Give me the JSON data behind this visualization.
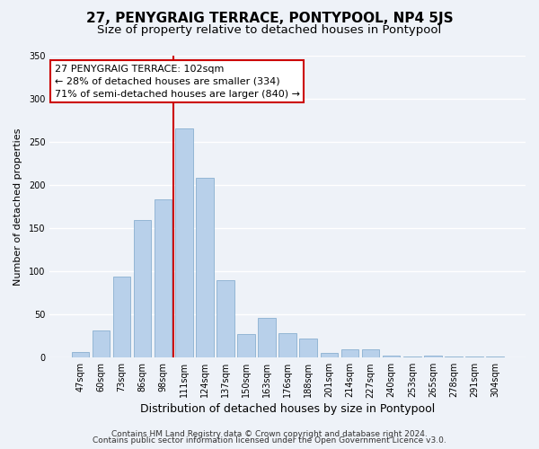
{
  "title": "27, PENYGRAIG TERRACE, PONTYPOOL, NP4 5JS",
  "subtitle": "Size of property relative to detached houses in Pontypool",
  "xlabel": "Distribution of detached houses by size in Pontypool",
  "ylabel": "Number of detached properties",
  "bar_labels": [
    "47sqm",
    "60sqm",
    "73sqm",
    "86sqm",
    "98sqm",
    "111sqm",
    "124sqm",
    "137sqm",
    "150sqm",
    "163sqm",
    "176sqm",
    "188sqm",
    "201sqm",
    "214sqm",
    "227sqm",
    "240sqm",
    "253sqm",
    "265sqm",
    "278sqm",
    "291sqm",
    "304sqm"
  ],
  "bar_values": [
    6,
    31,
    94,
    159,
    183,
    265,
    208,
    90,
    27,
    46,
    28,
    22,
    5,
    10,
    10,
    2,
    1,
    2,
    1,
    1,
    1
  ],
  "bar_color": "#b8d0ea",
  "bar_edge_color": "#8ab0d0",
  "background_color": "#eef2f8",
  "plot_bg_color": "#eef2f8",
  "grid_color": "#ffffff",
  "ylim": [
    0,
    350
  ],
  "yticks": [
    0,
    50,
    100,
    150,
    200,
    250,
    300,
    350
  ],
  "property_label": "27 PENYGRAIG TERRACE: 102sqm",
  "annotation_line1": "← 28% of detached houses are smaller (334)",
  "annotation_line2": "71% of semi-detached houses are larger (840) →",
  "vline_x_index": 4.5,
  "vline_color": "#cc0000",
  "annotation_box_color": "#ffffff",
  "annotation_box_edge": "#cc0000",
  "footer_line1": "Contains HM Land Registry data © Crown copyright and database right 2024.",
  "footer_line2": "Contains public sector information licensed under the Open Government Licence v3.0.",
  "title_fontsize": 11,
  "subtitle_fontsize": 9.5,
  "xlabel_fontsize": 9,
  "ylabel_fontsize": 8,
  "tick_fontsize": 7,
  "annotation_fontsize": 8,
  "footer_fontsize": 6.5
}
